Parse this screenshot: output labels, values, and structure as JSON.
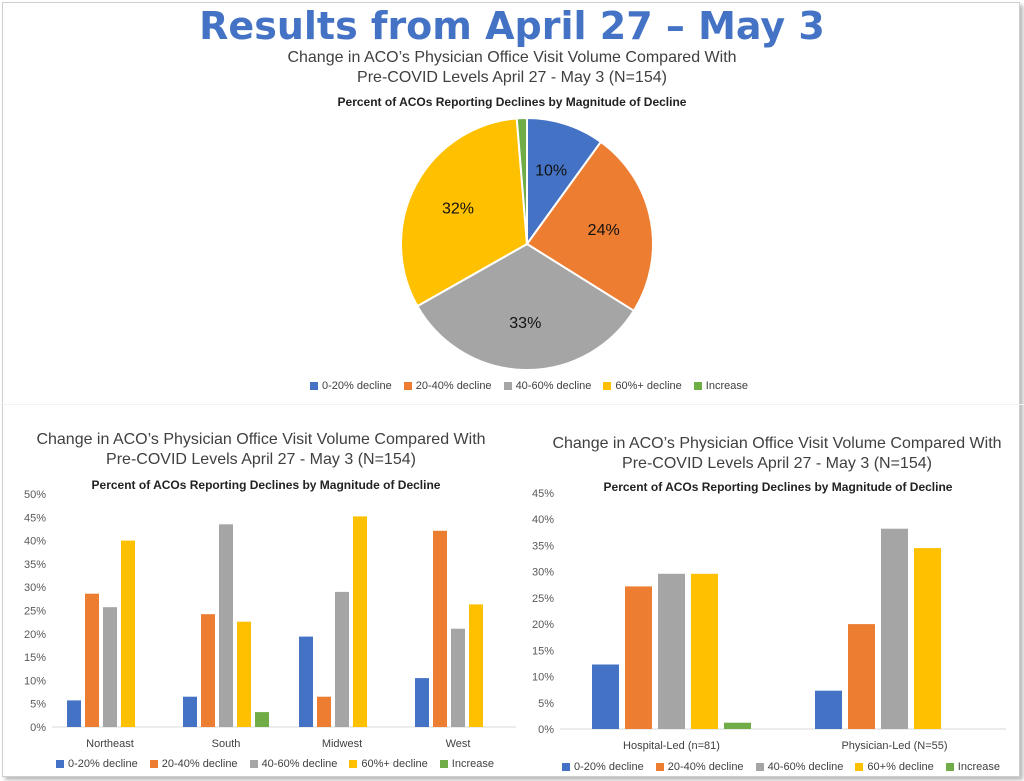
{
  "page": {
    "title": "Results from April 27 – May 3"
  },
  "colors": {
    "title": "#4472c4",
    "series": [
      "#4472c4",
      "#ed7d31",
      "#a5a5a5",
      "#ffc000",
      "#70ad47"
    ]
  },
  "charts": {
    "pie": {
      "title_line1": "Change in ACO’s Physician Office Visit Volume Compared With",
      "title_line2": "Pre-COVID Levels April 27 - May 3 (N=154)",
      "subtitle": "Percent of ACOs Reporting Declines by Magnitude of Decline",
      "legend": [
        "0-20% decline",
        "20-40% decline",
        "40-60% decline",
        "60%+ decline",
        "Increase"
      ]
    },
    "region": {
      "title_line1": "Change in ACO’s Physician Office Visit Volume Compared With",
      "title_line2": "Pre-COVID Levels April 27 - May 3 (N=154)",
      "subtitle": "Percent of ACOs Reporting Declines by Magnitude of Decline",
      "legend": [
        "0-20% decline",
        "20-40% decline",
        "40-60% decline",
        "60%+ decline",
        "Increase"
      ]
    },
    "leadership": {
      "title_line1": "Change in ACO’s Physician Office Visit Volume Compared With",
      "title_line2": "Pre-COVID Levels April 27 - May 3 (N=154)",
      "subtitle": "Percent of ACOs Reporting Declines by Magnitude of Decline",
      "legend": [
        "0-20% decline",
        "20-40%  decline",
        "40-60%  decline",
        "60+% decline",
        "Increase"
      ]
    }
  },
  "chart_data": [
    {
      "type": "pie",
      "title": "Percent of ACOs Reporting Declines by Magnitude of Decline",
      "categories": [
        "0-20% decline",
        "20-40% decline",
        "40-60% decline",
        "60%+ decline",
        "Increase"
      ],
      "values": [
        10,
        24,
        33,
        32,
        1.3
      ],
      "data_labels": [
        "10%",
        "24%",
        "33%",
        "32%",
        ""
      ],
      "legend_position": "bottom"
    },
    {
      "type": "bar",
      "title": "Percent of ACOs Reporting Declines by Magnitude of Decline",
      "categories": [
        "Northeast",
        "South",
        "Midwest",
        "West"
      ],
      "series": [
        {
          "name": "0-20% decline",
          "values": [
            5.7,
            6.5,
            19.4,
            10.5
          ]
        },
        {
          "name": "20-40% decline",
          "values": [
            28.6,
            24.2,
            6.5,
            42.1
          ]
        },
        {
          "name": "40-60% decline",
          "values": [
            25.7,
            43.5,
            29.0,
            21.1
          ]
        },
        {
          "name": "60%+ decline",
          "values": [
            40.0,
            22.6,
            45.2,
            26.3
          ]
        },
        {
          "name": "Increase",
          "values": [
            0,
            3.2,
            0,
            0
          ]
        }
      ],
      "ylim": [
        0,
        50
      ],
      "yticks": [
        "0%",
        "5%",
        "10%",
        "15%",
        "20%",
        "25%",
        "30%",
        "35%",
        "40%",
        "45%",
        "50%"
      ],
      "grid": false,
      "legend_position": "bottom"
    },
    {
      "type": "bar",
      "title": "Percent of ACOs Reporting Declines by Magnitude of Decline",
      "categories": [
        "Hospital-Led (n=81)",
        "Physician-Led (N=55)"
      ],
      "series": [
        {
          "name": "0-20% decline",
          "values": [
            12.3,
            7.3
          ]
        },
        {
          "name": "20-40%  decline",
          "values": [
            27.2,
            20.0
          ]
        },
        {
          "name": "40-60%  decline",
          "values": [
            29.6,
            38.2
          ]
        },
        {
          "name": "60+% decline",
          "values": [
            29.6,
            34.5
          ]
        },
        {
          "name": "Increase",
          "values": [
            1.2,
            0
          ]
        }
      ],
      "ylim": [
        0,
        45
      ],
      "yticks": [
        "0%",
        "5%",
        "10%",
        "15%",
        "20%",
        "25%",
        "30%",
        "35%",
        "40%",
        "45%"
      ],
      "grid": false,
      "legend_position": "bottom"
    }
  ]
}
